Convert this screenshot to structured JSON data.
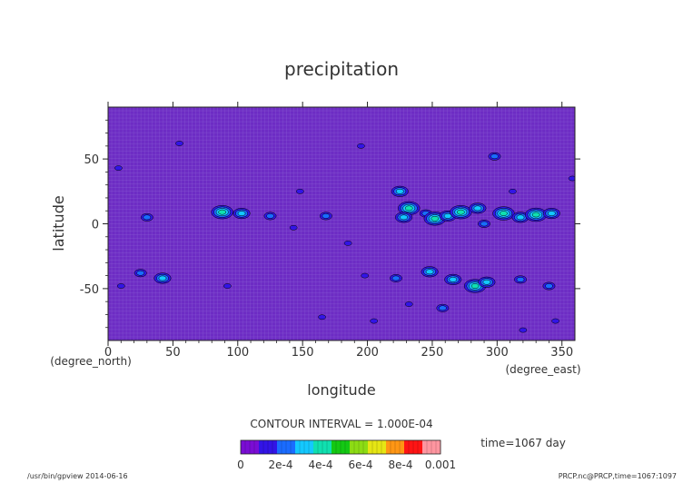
{
  "chart_data": {
    "type": "heatmap",
    "title": "precipitation",
    "xlabel": "longitude",
    "ylabel": "latitude",
    "x_unit": "(degree_east)",
    "y_unit": "(degree_north)",
    "xlim": [
      0,
      360
    ],
    "ylim": [
      -90,
      90
    ],
    "x_ticks": [
      0,
      50,
      100,
      150,
      200,
      250,
      300,
      350
    ],
    "y_ticks": [
      -50,
      0,
      50
    ],
    "contour_interval_text": "CONTOUR INTERVAL = 1.000E-04",
    "time_text": "time=1067 day",
    "colorbar": {
      "levels": [
        0,
        0.0001,
        0.0002,
        0.0003,
        0.0004,
        0.0005,
        0.0006,
        0.0007,
        0.0008,
        0.0009,
        0.001
      ],
      "tick_labels": [
        "0",
        "2e-4",
        "4e-4",
        "6e-4",
        "8e-4",
        "0.001"
      ],
      "colors": [
        "#7a0dd4",
        "#3214e6",
        "#1a6cff",
        "#14c8ff",
        "#10e0b0",
        "#14c814",
        "#8cdc14",
        "#e6e614",
        "#ff9614",
        "#ff1414",
        "#ff96a0"
      ]
    },
    "background_color": "#6d2cc4",
    "regions": [
      {
        "lon": 8,
        "lat": 43,
        "level": 1
      },
      {
        "lon": 30,
        "lat": 5,
        "level": 2
      },
      {
        "lon": 42,
        "lat": -42,
        "level": 3
      },
      {
        "lon": 25,
        "lat": -38,
        "level": 2
      },
      {
        "lon": 88,
        "lat": 9,
        "level": 4
      },
      {
        "lon": 103,
        "lat": 8,
        "level": 3
      },
      {
        "lon": 125,
        "lat": 6,
        "level": 2
      },
      {
        "lon": 143,
        "lat": -3,
        "level": 1
      },
      {
        "lon": 168,
        "lat": 6,
        "level": 2
      },
      {
        "lon": 185,
        "lat": -15,
        "level": 1
      },
      {
        "lon": 225,
        "lat": 25,
        "level": 3
      },
      {
        "lon": 232,
        "lat": 12,
        "level": 4
      },
      {
        "lon": 228,
        "lat": 5,
        "level": 3
      },
      {
        "lon": 245,
        "lat": 8,
        "level": 2
      },
      {
        "lon": 252,
        "lat": 4,
        "level": 4
      },
      {
        "lon": 262,
        "lat": 6,
        "level": 3
      },
      {
        "lon": 272,
        "lat": 9,
        "level": 4
      },
      {
        "lon": 285,
        "lat": 12,
        "level": 3
      },
      {
        "lon": 305,
        "lat": 8,
        "level": 4
      },
      {
        "lon": 318,
        "lat": 5,
        "level": 3
      },
      {
        "lon": 330,
        "lat": 7,
        "level": 4
      },
      {
        "lon": 342,
        "lat": 8,
        "level": 3
      },
      {
        "lon": 290,
        "lat": 0,
        "level": 2
      },
      {
        "lon": 298,
        "lat": 52,
        "level": 2
      },
      {
        "lon": 312,
        "lat": 25,
        "level": 1
      },
      {
        "lon": 198,
        "lat": -40,
        "level": 1
      },
      {
        "lon": 222,
        "lat": -42,
        "level": 2
      },
      {
        "lon": 248,
        "lat": -37,
        "level": 3
      },
      {
        "lon": 266,
        "lat": -43,
        "level": 3
      },
      {
        "lon": 283,
        "lat": -48,
        "level": 4
      },
      {
        "lon": 292,
        "lat": -45,
        "level": 3
      },
      {
        "lon": 318,
        "lat": -43,
        "level": 2
      },
      {
        "lon": 340,
        "lat": -48,
        "level": 2
      },
      {
        "lon": 232,
        "lat": -62,
        "level": 1
      },
      {
        "lon": 258,
        "lat": -65,
        "level": 2
      },
      {
        "lon": 320,
        "lat": -82,
        "level": 1
      },
      {
        "lon": 92,
        "lat": -48,
        "level": 1
      },
      {
        "lon": 165,
        "lat": -72,
        "level": 1
      },
      {
        "lon": 205,
        "lat": -75,
        "level": 1
      },
      {
        "lon": 345,
        "lat": -75,
        "level": 1
      },
      {
        "lon": 10,
        "lat": -48,
        "level": 1
      },
      {
        "lon": 55,
        "lat": 62,
        "level": 1
      },
      {
        "lon": 195,
        "lat": 60,
        "level": 1
      },
      {
        "lon": 148,
        "lat": 25,
        "level": 1
      },
      {
        "lon": 358,
        "lat": 35,
        "level": 1
      }
    ]
  },
  "footer": {
    "left": "/usr/bin/gpview  2014-06-16",
    "right": "PRCP.nc@PRCP,time=1067:1097"
  }
}
